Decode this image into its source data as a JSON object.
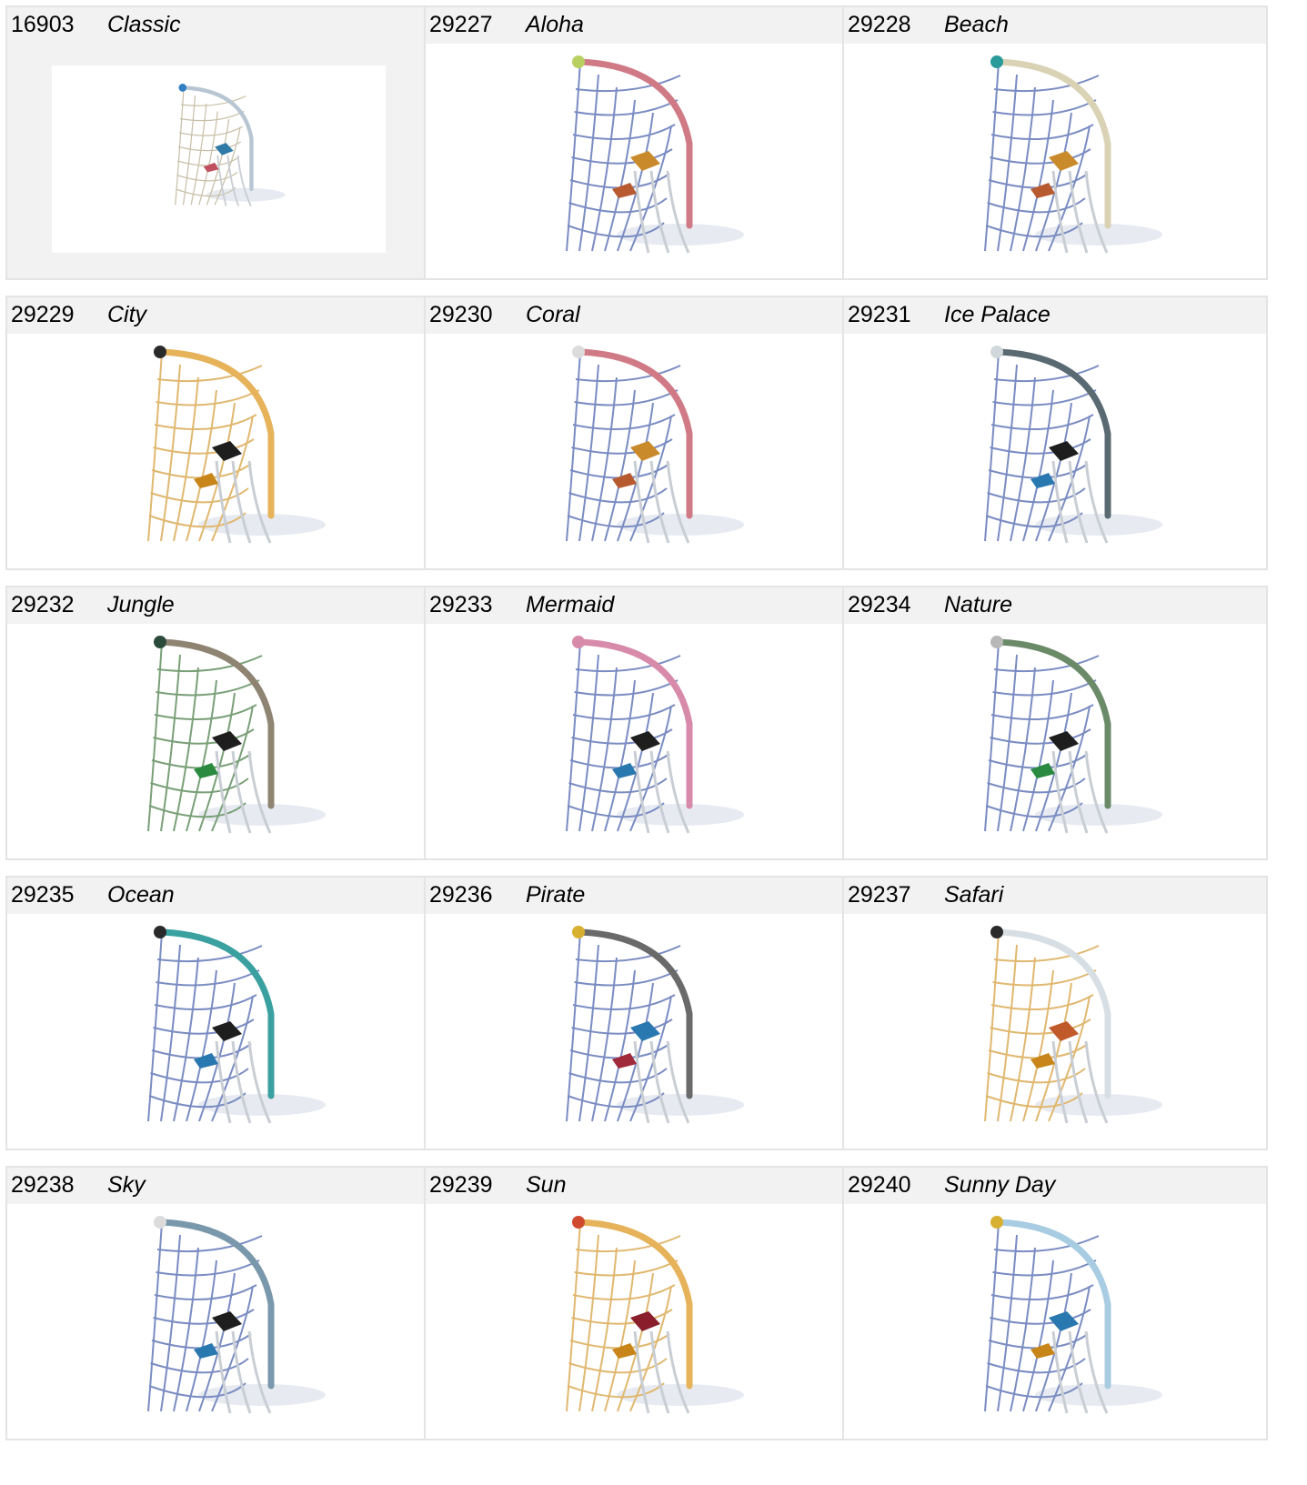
{
  "items": [
    {
      "code": "16903",
      "name": "Classic",
      "arc": "#b7c6d2",
      "ball": "#2f7fc2",
      "net": "#c8c0a8",
      "p1": "#2f7aa6",
      "p2": "#c05060"
    },
    {
      "code": "29227",
      "name": "Aloha",
      "arc": "#d07a86",
      "ball": "#b8d060",
      "net": "#7a8cc2",
      "p1": "#c88a2a",
      "p2": "#b85a30"
    },
    {
      "code": "29228",
      "name": "Beach",
      "arc": "#d9d2b4",
      "ball": "#2a9a9a",
      "net": "#7a8cc2",
      "p1": "#c88a2a",
      "p2": "#b85a30"
    },
    {
      "code": "29229",
      "name": "City",
      "arc": "#e6b25a",
      "ball": "#2a2a2a",
      "net": "#e0b870",
      "p1": "#1e1e1e",
      "p2": "#c8861a"
    },
    {
      "code": "29230",
      "name": "Coral",
      "arc": "#d07a86",
      "ball": "#dcdcdc",
      "net": "#7a8cc2",
      "p1": "#c88a2a",
      "p2": "#b85a30"
    },
    {
      "code": "29231",
      "name": "Ice Palace",
      "arc": "#5a6a72",
      "ball": "#d0d8dc",
      "net": "#7a8cc2",
      "p1": "#1e1e1e",
      "p2": "#2a78b0"
    },
    {
      "code": "29232",
      "name": "Jungle",
      "arc": "#8f8472",
      "ball": "#2a4a3a",
      "net": "#7aa078",
      "p1": "#1e1e1e",
      "p2": "#2a8a40"
    },
    {
      "code": "29233",
      "name": "Mermaid",
      "arc": "#d88aaa",
      "ball": "#d88aaa",
      "net": "#7a8cc2",
      "p1": "#1e1e1e",
      "p2": "#2a78b0"
    },
    {
      "code": "29234",
      "name": "Nature",
      "arc": "#6a8a68",
      "ball": "#b8b8b8",
      "net": "#7a8cc2",
      "p1": "#1e1e1e",
      "p2": "#2a8a40"
    },
    {
      "code": "29235",
      "name": "Ocean",
      "arc": "#3aa0a0",
      "ball": "#2a2a2a",
      "net": "#7a8cc2",
      "p1": "#1e1e1e",
      "p2": "#2a78b0"
    },
    {
      "code": "29236",
      "name": "Pirate",
      "arc": "#6a6a6a",
      "ball": "#d8b030",
      "net": "#7a8cc2",
      "p1": "#2a78b0",
      "p2": "#a02a3a"
    },
    {
      "code": "29237",
      "name": "Safari",
      "arc": "#d8dfe4",
      "ball": "#2a2a2a",
      "net": "#e0b870",
      "p1": "#c05a2a",
      "p2": "#c8861a"
    },
    {
      "code": "29238",
      "name": "Sky",
      "arc": "#7a98ac",
      "ball": "#dcdcdc",
      "net": "#7a8cc2",
      "p1": "#1e1e1e",
      "p2": "#2a78b0"
    },
    {
      "code": "29239",
      "name": "Sun",
      "arc": "#e6b25a",
      "ball": "#d04a30",
      "net": "#e0b870",
      "p1": "#8a1e2a",
      "p2": "#c8861a"
    },
    {
      "code": "29240",
      "name": "Sunny Day",
      "arc": "#a8cce2",
      "ball": "#d8b030",
      "net": "#7a8cc2",
      "p1": "#2a78b0",
      "p2": "#c8861a"
    }
  ]
}
